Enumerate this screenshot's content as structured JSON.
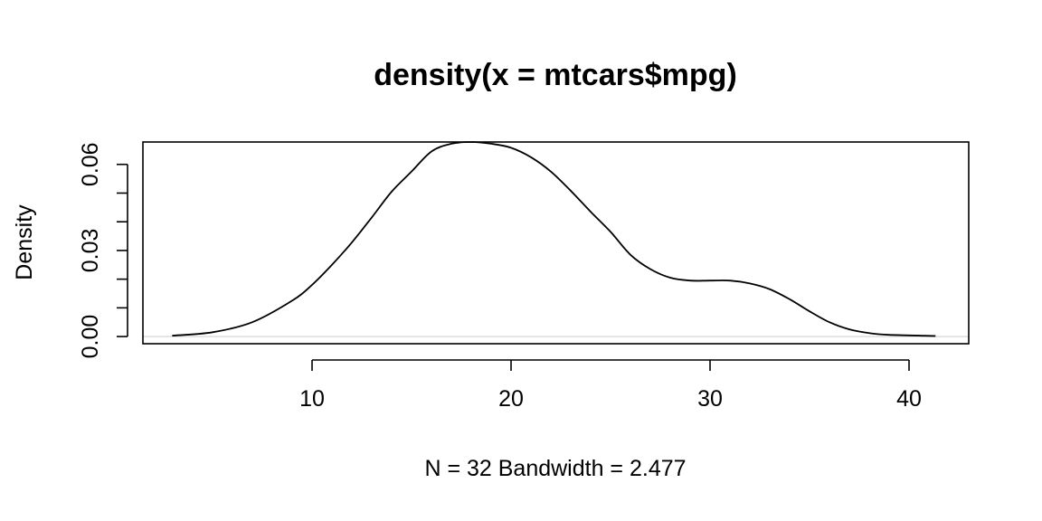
{
  "chart_data": {
    "type": "line",
    "title": "density(x = mtcars$mpg)",
    "xlabel": "N = 32   Bandwidth = 2.477",
    "ylabel": "Density",
    "xlim": [
      1.5,
      43
    ],
    "ylim": [
      -0.0025,
      0.0678
    ],
    "x_ticks": [
      10,
      20,
      30,
      40
    ],
    "x_tick_labels": [
      "10",
      "20",
      "30",
      "40"
    ],
    "y_ticks": [
      0.0,
      0.01,
      0.02,
      0.03,
      0.04,
      0.05,
      0.06
    ],
    "y_tick_labels": [
      "0.00",
      "",
      "",
      "0.03",
      "",
      "",
      "0.06"
    ],
    "grid": false,
    "zero_line": true,
    "series": [
      {
        "x": [
          2.97,
          5,
          7,
          9,
          10,
          11,
          12,
          13,
          14,
          15,
          16,
          17,
          18,
          19,
          20,
          21,
          22,
          23,
          24,
          25,
          26,
          27,
          28,
          29,
          30,
          31,
          32,
          33,
          34,
          35,
          36,
          37,
          38,
          39,
          41.33
        ],
        "y": [
          0.0003,
          0.0015,
          0.005,
          0.0125,
          0.018,
          0.025,
          0.0328,
          0.0415,
          0.0505,
          0.0575,
          0.0645,
          0.0672,
          0.0678,
          0.0672,
          0.0658,
          0.0625,
          0.0575,
          0.0508,
          0.0435,
          0.0365,
          0.0285,
          0.0235,
          0.0205,
          0.0195,
          0.0195,
          0.0195,
          0.0185,
          0.0165,
          0.013,
          0.0088,
          0.005,
          0.0025,
          0.0012,
          0.0006,
          0.0002
        ]
      }
    ]
  }
}
